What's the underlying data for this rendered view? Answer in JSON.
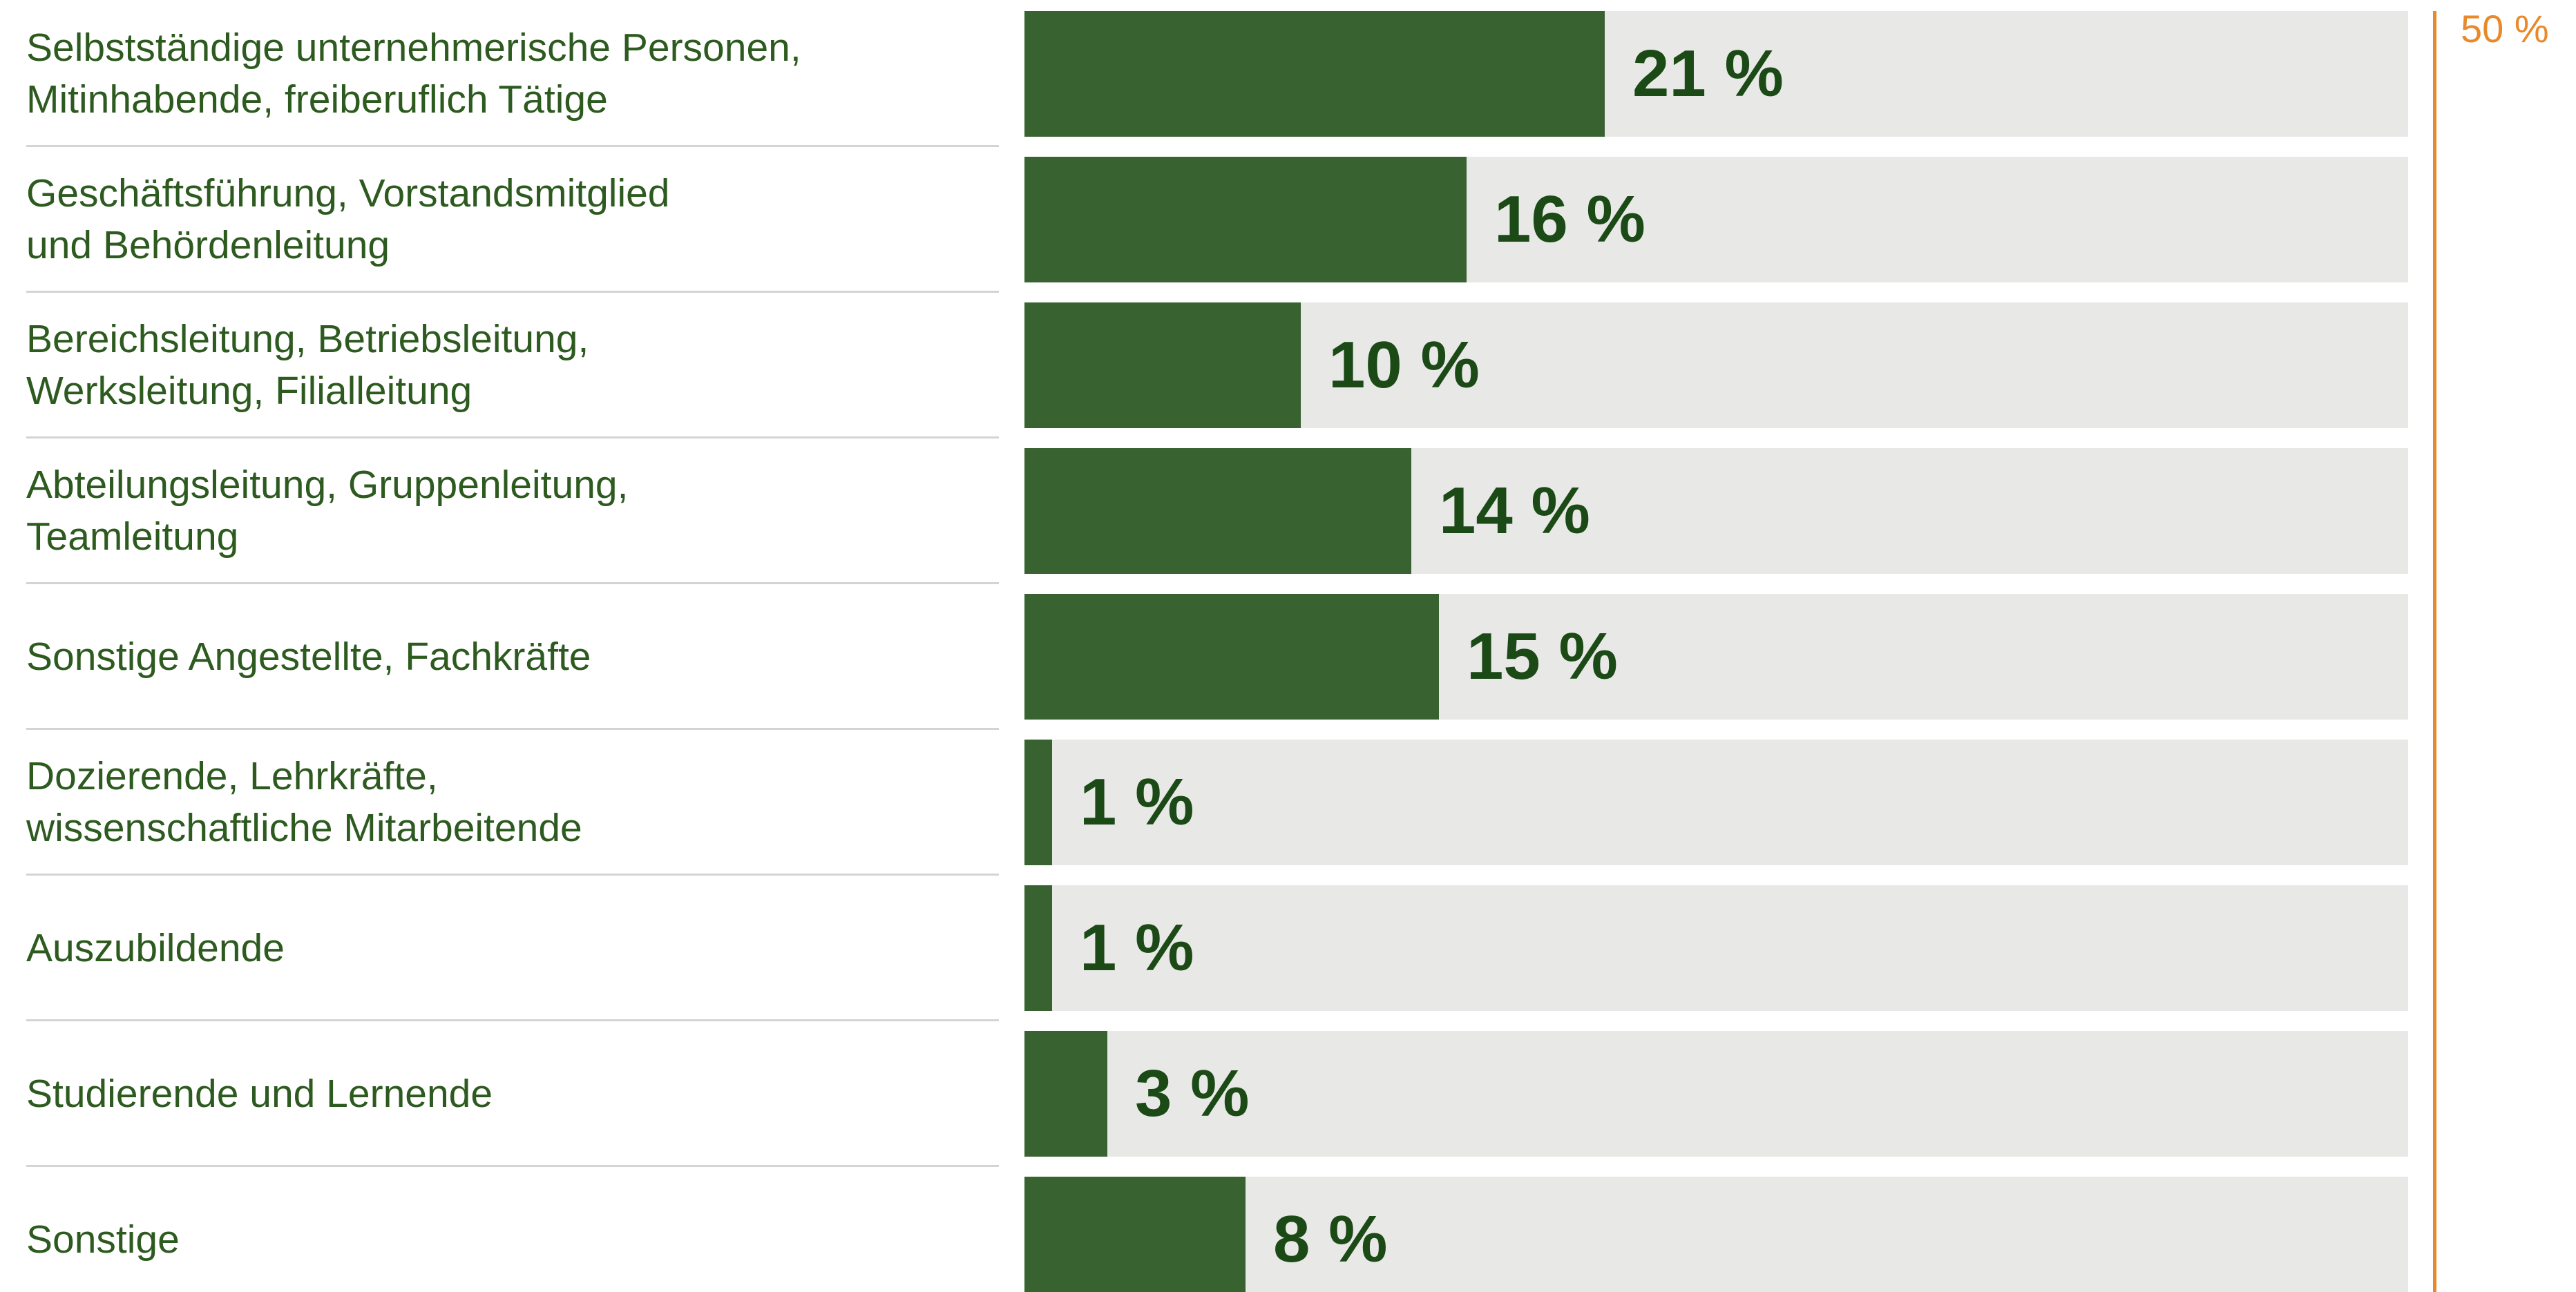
{
  "chart_data": {
    "type": "bar",
    "orientation": "horizontal",
    "categories": [
      "Selbstständige unternehmerische Personen,\nMitinhabende, freiberuflich Tätige",
      "Geschäftsführung, Vorstandsmitglied\nund Behördenleitung",
      "Bereichsleitung, Betriebsleitung,\nWerksleitung, Filialleitung",
      "Abteilungsleitung, Gruppenleitung,\nTeamleitung",
      "Sonstige Angestellte, Fachkräfte",
      "Dozierende, Lehrkräfte,\nwissenschaftliche Mitarbeitende",
      "Auszubildende",
      "Studierende und Lernende",
      "Sonstige"
    ],
    "values": [
      21,
      16,
      10,
      14,
      15,
      1,
      1,
      3,
      8
    ],
    "value_labels": [
      "21 %",
      "16 %",
      "10 %",
      "14 %",
      "15 %",
      "1 %",
      "1 %",
      "3 %",
      "8 %"
    ],
    "xlim": [
      0,
      50
    ],
    "reference_line": {
      "value": 50,
      "label": "50 %"
    },
    "grid": false,
    "legend": "none",
    "colors": {
      "bar": "#386330",
      "track": "#e8e8e6",
      "label_text": "#2d5a1f",
      "value_text": "#1b4a16",
      "reference": "#e8892b",
      "divider": "#d4d4d4"
    }
  }
}
